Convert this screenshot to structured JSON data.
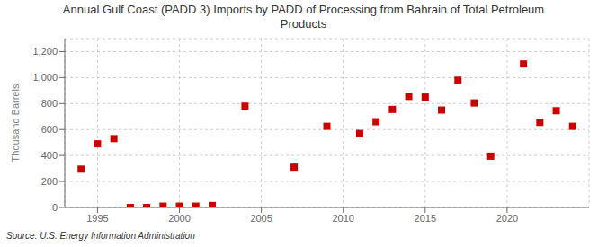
{
  "chart_data": {
    "type": "scatter",
    "title": "Annual Gulf Coast (PADD 3) Imports by PADD of Processing from Bahrain of Total Petroleum\nProducts",
    "ylabel": "Thousand Barrels",
    "annotations": [
      "Source: U.S. Energy Information Administration"
    ],
    "x": [
      1994,
      1995,
      1996,
      1997,
      1998,
      1999,
      2000,
      2001,
      2002,
      2004,
      2007,
      2009,
      2011,
      2012,
      2013,
      2014,
      2015,
      2016,
      2017,
      2018,
      2019,
      2021,
      2022,
      2023,
      2024
    ],
    "values": [
      295,
      490,
      530,
      0,
      0,
      10,
      10,
      10,
      15,
      780,
      310,
      625,
      570,
      660,
      755,
      855,
      850,
      750,
      980,
      805,
      395,
      1105,
      655,
      745,
      625
    ],
    "color": "#cc0000",
    "marker": "square",
    "xlim": [
      1993,
      2025
    ],
    "xticks": [
      1995,
      2000,
      2005,
      2010,
      2015,
      2020
    ],
    "ylim": [
      0,
      1300
    ],
    "yticks": [
      0,
      200,
      400,
      600,
      800,
      {
        "value": 1000,
        "label": "1,000"
      },
      {
        "value": 1200,
        "label": "1,200"
      }
    ],
    "grid": true
  }
}
